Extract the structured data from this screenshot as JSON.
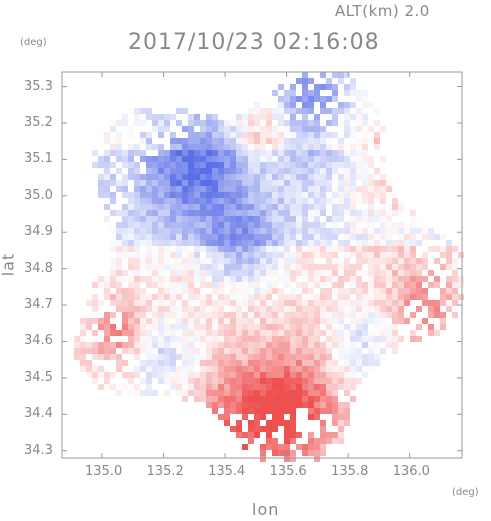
{
  "header": {
    "altitude_label": "ALT(km)  2.0",
    "timestamp": "2017/10/23 02:16:08"
  },
  "chart_data": {
    "type": "heatmap",
    "title": "2017/10/23 02:16:08",
    "subtitle": "ALT(km)  2.0",
    "xlabel": "lon",
    "ylabel": "lat",
    "x_unit": "(deg)",
    "y_unit": "(deg)",
    "xlim": [
      134.87,
      136.17
    ],
    "ylim": [
      34.28,
      35.34
    ],
    "x_ticks": [
      "135.0",
      "135.2",
      "135.4",
      "135.6",
      "135.8",
      "136.0"
    ],
    "y_ticks": [
      "34.3",
      "34.4",
      "34.5",
      "34.6",
      "34.7",
      "34.8",
      "34.9",
      "35.0",
      "35.1",
      "35.2",
      "35.3"
    ],
    "radar_center": {
      "lon": 135.52,
      "lat": 34.81
    },
    "color_scale": {
      "negative": "#5a6ee6",
      "neutral": "#ffffff",
      "positive": "#ee5050"
    },
    "regions": [
      {
        "lon": 135.52,
        "lat": 35.05,
        "r": 0.35,
        "sign": -1,
        "intensity": 0.3
      },
      {
        "lon": 135.3,
        "lat": 35.08,
        "r": 0.12,
        "sign": -1,
        "intensity": 0.7
      },
      {
        "lon": 135.68,
        "lat": 35.28,
        "r": 0.1,
        "sign": -1,
        "intensity": 0.65
      },
      {
        "lon": 135.45,
        "lat": 34.86,
        "r": 0.08,
        "sign": -1,
        "intensity": 0.55
      },
      {
        "lon": 135.95,
        "lat": 35.05,
        "r": 0.12,
        "sign": 1,
        "intensity": 0.4
      },
      {
        "lon": 135.52,
        "lat": 35.18,
        "r": 0.07,
        "sign": 1,
        "intensity": 0.45
      },
      {
        "lon": 135.52,
        "lat": 34.79,
        "r": 0.45,
        "sign": 1,
        "intensity": 0.35
      },
      {
        "lon": 135.62,
        "lat": 34.42,
        "r": 0.1,
        "sign": 1,
        "intensity": 0.75
      },
      {
        "lon": 135.45,
        "lat": 34.36,
        "r": 0.12,
        "sign": 1,
        "intensity": 0.6
      },
      {
        "lon": 135.2,
        "lat": 34.55,
        "r": 0.08,
        "sign": -1,
        "intensity": 0.4
      },
      {
        "lon": 135.85,
        "lat": 34.58,
        "r": 0.08,
        "sign": -1,
        "intensity": 0.35
      },
      {
        "lon": 135.05,
        "lat": 34.62,
        "r": 0.06,
        "sign": 1,
        "intensity": 0.55
      },
      {
        "lon": 136.05,
        "lat": 34.7,
        "r": 0.08,
        "sign": 1,
        "intensity": 0.5
      }
    ]
  }
}
